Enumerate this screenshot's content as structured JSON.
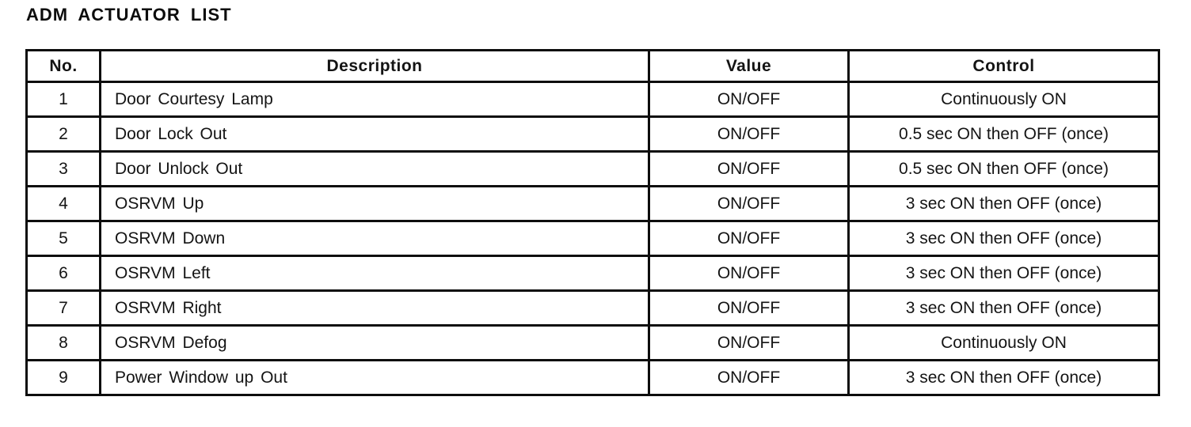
{
  "page_title": "ADM ACTUATOR LIST",
  "table": {
    "headers": {
      "no": "No.",
      "description": "Description",
      "value": "Value",
      "control": "Control"
    },
    "rows": [
      {
        "no": "1",
        "description": "Door Courtesy Lamp",
        "value": "ON/OFF",
        "control": "Continuously ON"
      },
      {
        "no": "2",
        "description": "Door Lock Out",
        "value": "ON/OFF",
        "control": "0.5 sec ON then OFF (once)"
      },
      {
        "no": "3",
        "description": "Door Unlock Out",
        "value": "ON/OFF",
        "control": "0.5 sec ON then OFF (once)"
      },
      {
        "no": "4",
        "description": "OSRVM Up",
        "value": "ON/OFF",
        "control": "3 sec ON then OFF (once)"
      },
      {
        "no": "5",
        "description": "OSRVM Down",
        "value": "ON/OFF",
        "control": "3 sec ON then OFF (once)"
      },
      {
        "no": "6",
        "description": "OSRVM Left",
        "value": "ON/OFF",
        "control": "3 sec ON then OFF (once)"
      },
      {
        "no": "7",
        "description": "OSRVM Right",
        "value": "ON/OFF",
        "control": "3 sec ON then OFF (once)"
      },
      {
        "no": "8",
        "description": "OSRVM Defog",
        "value": "ON/OFF",
        "control": "Continuously ON"
      },
      {
        "no": "9",
        "description": "Power Window up Out",
        "value": "ON/OFF",
        "control": "3 sec ON then OFF (once)"
      }
    ]
  }
}
